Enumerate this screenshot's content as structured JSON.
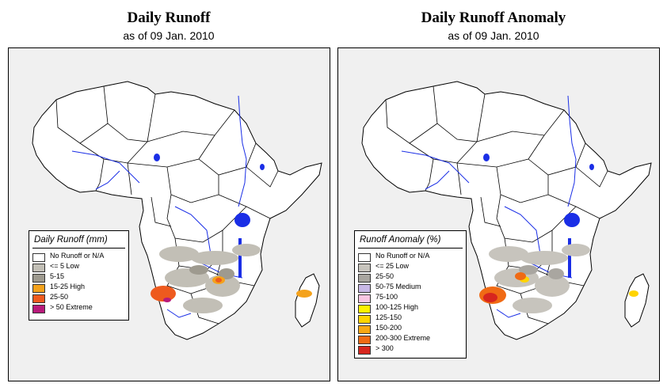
{
  "left_panel": {
    "title": "Daily Runoff",
    "subtitle": "as of 09 Jan. 2010",
    "legend": {
      "title": "Daily Runoff (mm)",
      "items": [
        {
          "label": "No Runoff or N/A",
          "color": "#ffffff"
        },
        {
          "label": "<= 5  Low",
          "color": "#c2bfb6"
        },
        {
          "label": "5-15",
          "color": "#9e9a8f"
        },
        {
          "label": "15-25 High",
          "color": "#f4a21c"
        },
        {
          "label": "25-50",
          "color": "#ee5a1e"
        },
        {
          "label": "> 50  Extreme",
          "color": "#b81a7a"
        }
      ]
    }
  },
  "right_panel": {
    "title": "Daily Runoff Anomaly",
    "subtitle": "as of 09 Jan. 2010",
    "legend": {
      "title": "Runoff Anomaly (%)",
      "items": [
        {
          "label": "No Runoff or N/A",
          "color": "#ffffff"
        },
        {
          "label": "<= 25      Low",
          "color": "#c7c4bd"
        },
        {
          "label": "25-50",
          "color": "#a9a6a0"
        },
        {
          "label": "50-75    Medium",
          "color": "#c8b8e6"
        },
        {
          "label": "75-100",
          "color": "#f8c6e2"
        },
        {
          "label": "100-125  High",
          "color": "#fff200"
        },
        {
          "label": "125-150",
          "color": "#ffd400"
        },
        {
          "label": "150-200",
          "color": "#f8a814"
        },
        {
          "label": "200-300  Extreme",
          "color": "#f06a14"
        },
        {
          "label": "> 300",
          "color": "#d7261e"
        }
      ]
    }
  },
  "colors": {
    "map_background": "#f0f0f0",
    "land": "#ffffff",
    "border": "#000000",
    "water": "#1a2ee6"
  }
}
